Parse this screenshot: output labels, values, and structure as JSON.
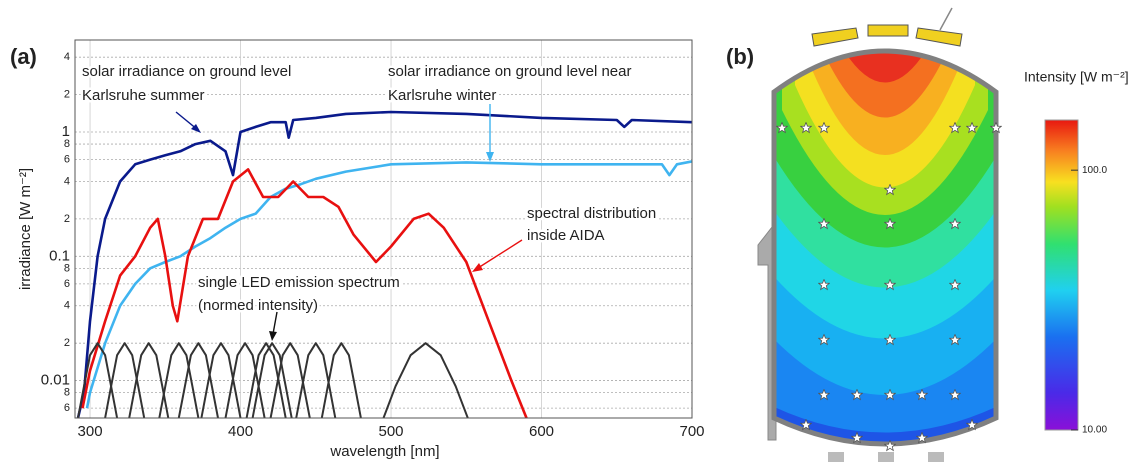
{
  "chart_data": {
    "type": "line",
    "panel_label": "(a)",
    "x_label": "wavelength [nm]",
    "y_label": "irradiance [W m⁻²]",
    "log_y": true,
    "grid": true,
    "xlim": [
      290,
      700
    ],
    "xticks": [
      300,
      400,
      500,
      600,
      700
    ],
    "ylim": [
      0.005,
      5.5
    ],
    "yticks": [
      {
        "value": 0.006,
        "label": "6"
      },
      {
        "value": 0.008,
        "label": "8"
      },
      0.01,
      {
        "value": 0.02,
        "label": "2"
      },
      {
        "value": 0.04,
        "label": "4"
      },
      {
        "value": 0.06,
        "label": "6"
      },
      {
        "value": 0.08,
        "label": "8"
      },
      0.1,
      {
        "value": 0.2,
        "label": "2"
      },
      {
        "value": 0.4,
        "label": "4"
      },
      {
        "value": 0.6,
        "label": "6"
      },
      {
        "value": 0.8,
        "label": "8"
      },
      1,
      {
        "value": 2,
        "label": "2"
      },
      {
        "value": 4,
        "label": "4"
      }
    ],
    "annotations": [
      "solar irradiance on ground level",
      "Karlsruhe summer",
      "solar irradiance on ground level near",
      "Karlsruhe winter",
      "spectral distribution",
      "inside AIDA",
      "single LED emission spectrum",
      "(normed intensity)"
    ],
    "series": [
      {
        "color": "#0a1a8c",
        "x": [
          292,
          296,
          300,
          305,
          310,
          320,
          330,
          340,
          350,
          360,
          370,
          380,
          390,
          395,
          400,
          410,
          420,
          430,
          432,
          435,
          450,
          470,
          500,
          550,
          600,
          650,
          655,
          660,
          700
        ],
        "values": [
          0.005,
          0.008,
          0.03,
          0.1,
          0.2,
          0.4,
          0.55,
          0.6,
          0.65,
          0.7,
          0.8,
          0.85,
          0.7,
          0.45,
          1.0,
          1.1,
          1.2,
          1.2,
          0.9,
          1.25,
          1.3,
          1.4,
          1.45,
          1.4,
          1.3,
          1.25,
          1.1,
          1.25,
          1.2
        ]
      },
      {
        "color": "#3fb4f0",
        "x": [
          298,
          300,
          310,
          320,
          330,
          340,
          350,
          360,
          370,
          380,
          390,
          400,
          410,
          420,
          430,
          440,
          450,
          470,
          500,
          550,
          600,
          650,
          680,
          685,
          690,
          700
        ],
        "values": [
          0.006,
          0.008,
          0.02,
          0.04,
          0.06,
          0.08,
          0.09,
          0.1,
          0.12,
          0.14,
          0.17,
          0.2,
          0.22,
          0.3,
          0.35,
          0.38,
          0.42,
          0.48,
          0.55,
          0.57,
          0.55,
          0.55,
          0.55,
          0.45,
          0.55,
          0.58
        ]
      },
      {
        "color": "#e81010",
        "x": [
          295,
          300,
          310,
          320,
          330,
          340,
          345,
          350,
          355,
          358,
          365,
          375,
          385,
          395,
          405,
          415,
          425,
          435,
          445,
          455,
          465,
          475,
          490,
          500,
          515,
          525,
          535,
          550,
          565,
          580,
          590
        ],
        "values": [
          0.006,
          0.012,
          0.03,
          0.07,
          0.1,
          0.17,
          0.2,
          0.1,
          0.04,
          0.03,
          0.1,
          0.2,
          0.2,
          0.4,
          0.5,
          0.3,
          0.3,
          0.4,
          0.3,
          0.3,
          0.25,
          0.15,
          0.09,
          0.12,
          0.2,
          0.22,
          0.17,
          0.09,
          0.03,
          0.01,
          0.005
        ]
      },
      {
        "color": "#333333",
        "x": [
          292,
          296,
          300,
          305,
          310,
          314,
          318
        ],
        "values": [
          0.005,
          0.009,
          0.016,
          0.02,
          0.016,
          0.009,
          0.005
        ]
      },
      {
        "color": "#333333",
        "x": [
          310,
          314,
          318,
          323,
          328,
          332,
          336
        ],
        "values": [
          0.005,
          0.009,
          0.016,
          0.02,
          0.016,
          0.009,
          0.005
        ]
      },
      {
        "color": "#333333",
        "x": [
          326,
          330,
          334,
          339,
          344,
          348,
          352
        ],
        "values": [
          0.005,
          0.009,
          0.016,
          0.02,
          0.016,
          0.009,
          0.005
        ]
      },
      {
        "color": "#333333",
        "x": [
          346,
          350,
          354,
          359,
          364,
          368,
          372
        ],
        "values": [
          0.005,
          0.009,
          0.016,
          0.02,
          0.016,
          0.009,
          0.005
        ]
      },
      {
        "color": "#333333",
        "x": [
          359,
          363,
          367,
          372,
          377,
          381,
          385
        ],
        "values": [
          0.005,
          0.009,
          0.016,
          0.02,
          0.016,
          0.009,
          0.005
        ]
      },
      {
        "color": "#333333",
        "x": [
          374,
          378,
          382,
          387,
          392,
          396,
          400
        ],
        "values": [
          0.005,
          0.009,
          0.016,
          0.02,
          0.016,
          0.009,
          0.005
        ]
      },
      {
        "color": "#333333",
        "x": [
          390,
          394,
          398,
          403,
          408,
          412,
          416
        ],
        "values": [
          0.005,
          0.009,
          0.016,
          0.02,
          0.016,
          0.009,
          0.005
        ]
      },
      {
        "color": "#333333",
        "x": [
          404,
          408,
          412,
          417,
          422,
          426,
          430
        ],
        "values": [
          0.005,
          0.009,
          0.016,
          0.02,
          0.016,
          0.009,
          0.005
        ]
      },
      {
        "color": "#333333",
        "x": [
          408,
          412,
          416,
          421,
          426,
          430,
          434
        ],
        "values": [
          0.005,
          0.009,
          0.016,
          0.02,
          0.016,
          0.009,
          0.005
        ]
      },
      {
        "color": "#333333",
        "x": [
          420,
          424,
          428,
          433,
          438,
          442,
          446
        ],
        "values": [
          0.005,
          0.009,
          0.016,
          0.02,
          0.016,
          0.009,
          0.005
        ]
      },
      {
        "color": "#333333",
        "x": [
          437,
          441,
          445,
          450,
          455,
          459,
          463
        ],
        "values": [
          0.005,
          0.009,
          0.016,
          0.02,
          0.016,
          0.009,
          0.005
        ]
      },
      {
        "color": "#333333",
        "x": [
          454,
          458,
          462,
          467,
          472,
          476,
          480
        ],
        "values": [
          0.005,
          0.009,
          0.016,
          0.02,
          0.016,
          0.009,
          0.005
        ]
      },
      {
        "color": "#333333",
        "x": [
          495,
          503,
          513,
          523,
          533,
          543,
          551
        ],
        "values": [
          0.005,
          0.009,
          0.016,
          0.02,
          0.016,
          0.009,
          0.005
        ]
      }
    ]
  },
  "diagram": {
    "panel_label": "(b)",
    "colorbar_title": "Intensity [W m⁻²]",
    "log_scale": true,
    "clim": [
      10,
      156
    ],
    "colorbar_ticks": [
      {
        "value": 100,
        "label": "100.0"
      },
      {
        "value": 10,
        "label": "10.00"
      }
    ]
  }
}
